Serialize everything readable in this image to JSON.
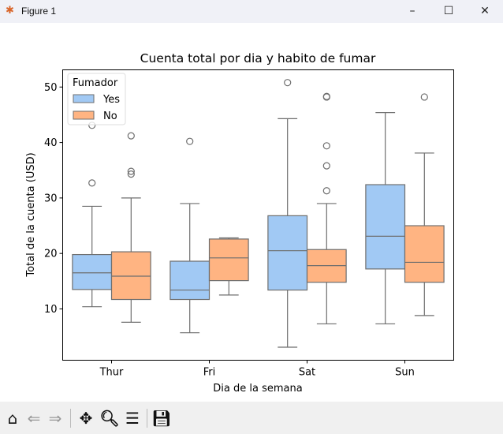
{
  "window": {
    "title": "Figure 1",
    "minimize": "–",
    "maximize": "☐",
    "close": "✕"
  },
  "toolbar": {
    "icons": [
      "home-icon",
      "back-icon",
      "forward-icon",
      "pan-icon",
      "zoom-icon",
      "configure-subplots-icon",
      "save-icon"
    ]
  },
  "chart_data": {
    "type": "box",
    "title": "Cuenta total por dia y habito de fumar",
    "xlabel": "Dia de la semana",
    "ylabel": "Total de la cuenta (USD)",
    "ylim": [
      0.75,
      53.1
    ],
    "yticks": [
      10,
      20,
      30,
      40,
      50
    ],
    "categories": [
      "Thur",
      "Fri",
      "Sat",
      "Sun"
    ],
    "legend": {
      "title": "Fumador",
      "placement": "top-left"
    },
    "series": [
      {
        "name": "Yes",
        "color": "#a1c9f4",
        "boxes": [
          {
            "whislo": 10.4,
            "q1": 13.5,
            "med": 16.5,
            "q3": 19.8,
            "whishi": 28.5,
            "fliers": [
              32.7,
              43.1
            ]
          },
          {
            "whislo": 5.7,
            "q1": 11.7,
            "med": 13.4,
            "q3": 18.6,
            "whishi": 29.0,
            "fliers": [
              40.2
            ]
          },
          {
            "whislo": 3.1,
            "q1": 13.4,
            "med": 20.5,
            "q3": 26.8,
            "whishi": 44.3,
            "fliers": [
              50.8
            ]
          },
          {
            "whislo": 7.3,
            "q1": 17.2,
            "med": 23.1,
            "q3": 32.4,
            "whishi": 45.4,
            "fliers": []
          }
        ]
      },
      {
        "name": "No",
        "color": "#ffb482",
        "boxes": [
          {
            "whislo": 7.6,
            "q1": 11.7,
            "med": 15.9,
            "q3": 20.3,
            "whishi": 30.0,
            "fliers": [
              34.3,
              34.8,
              41.2
            ]
          },
          {
            "whislo": 12.5,
            "q1": 15.1,
            "med": 19.2,
            "q3": 22.6,
            "whishi": 22.8,
            "fliers": []
          },
          {
            "whislo": 7.3,
            "q1": 14.8,
            "med": 17.8,
            "q3": 20.7,
            "whishi": 29.0,
            "fliers": [
              31.3,
              35.8,
              39.4,
              48.2,
              48.3
            ]
          },
          {
            "whislo": 8.8,
            "q1": 14.8,
            "med": 18.4,
            "q3": 25.0,
            "whishi": 38.1,
            "fliers": [
              48.2
            ]
          }
        ]
      }
    ]
  }
}
